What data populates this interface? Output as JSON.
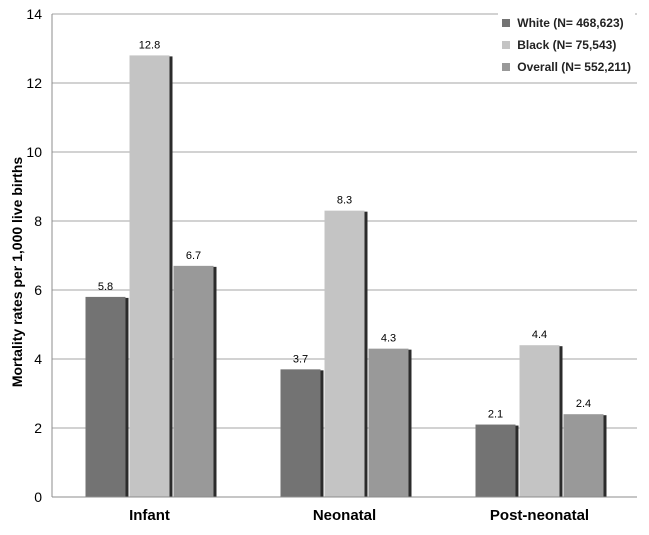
{
  "chart_data": {
    "type": "bar",
    "title": "",
    "xlabel": "",
    "ylabel": "Mortality rates per 1,000 live births",
    "ylim": [
      0,
      14
    ],
    "yticks": [
      0,
      2,
      4,
      6,
      8,
      10,
      12,
      14
    ],
    "grid": true,
    "legend_position": "top-right",
    "categories": [
      "Infant",
      "Neonatal",
      "Post-neonatal"
    ],
    "series": [
      {
        "name": "White (N= 468,623)",
        "values": [
          5.8,
          3.7,
          2.1
        ],
        "labels": [
          "5.8",
          "3.7",
          "2.1"
        ],
        "color": "#737373"
      },
      {
        "name": "Black (N= 75,543)",
        "values": [
          12.8,
          8.3,
          4.4
        ],
        "labels": [
          "12.8",
          "8.3",
          "4.4"
        ],
        "color": "#c4c4c4"
      },
      {
        "name": "Overall (N= 552,211)",
        "values": [
          6.7,
          4.3,
          2.4
        ],
        "labels": [
          "6.7",
          "4.3",
          "2.4"
        ],
        "color": "#999999"
      }
    ]
  }
}
